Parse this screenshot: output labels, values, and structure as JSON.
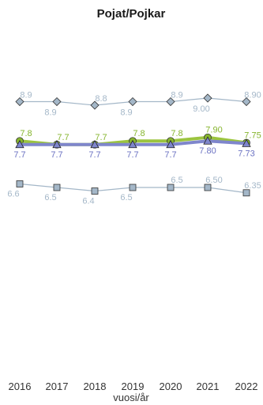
{
  "chart_data": {
    "type": "line",
    "title": "Pojat/Pojkar",
    "xlabel": "vuosi/år",
    "ylabel": "",
    "x": [
      "2016",
      "2017",
      "2018",
      "2019",
      "2020",
      "2021",
      "2022"
    ],
    "ylim": [
      0,
      10
    ],
    "grid": false,
    "legend": "none",
    "series": [
      {
        "marker": "diamond",
        "color": "#a4b7c8",
        "label_color": "#a4b7c8",
        "values": [
          8.9,
          8.9,
          8.8,
          8.9,
          8.9,
          9.0,
          8.9
        ],
        "labels": [
          "8.9",
          "8.9",
          "8.8",
          "8.9",
          "8.9",
          "9.00",
          "8.90"
        ]
      },
      {
        "marker": "circle",
        "color": "#9bc43f",
        "label_color": "#86b52e",
        "values": [
          7.8,
          7.7,
          7.7,
          7.8,
          7.8,
          7.9,
          7.75
        ],
        "labels": [
          "7.8",
          "7.7",
          "7.7",
          "7.8",
          "7.8",
          "7.90",
          "7.75"
        ]
      },
      {
        "marker": "triangle",
        "color": "#7f86cc",
        "label_color": "#6b72c2",
        "values": [
          7.7,
          7.7,
          7.7,
          7.7,
          7.7,
          7.8,
          7.73
        ],
        "labels": [
          "7.7",
          "7.7",
          "7.7",
          "7.7",
          "7.7",
          "7.80",
          "7.73"
        ]
      },
      {
        "marker": "square",
        "color": "#a4b7c8",
        "label_color": "#a4b7c8",
        "values": [
          6.6,
          6.5,
          6.4,
          6.5,
          6.5,
          6.5,
          6.35
        ],
        "labels": [
          "6.6",
          "6.5",
          "6.4",
          "6.5",
          "6.5",
          "6.50",
          "6.35"
        ]
      }
    ]
  }
}
